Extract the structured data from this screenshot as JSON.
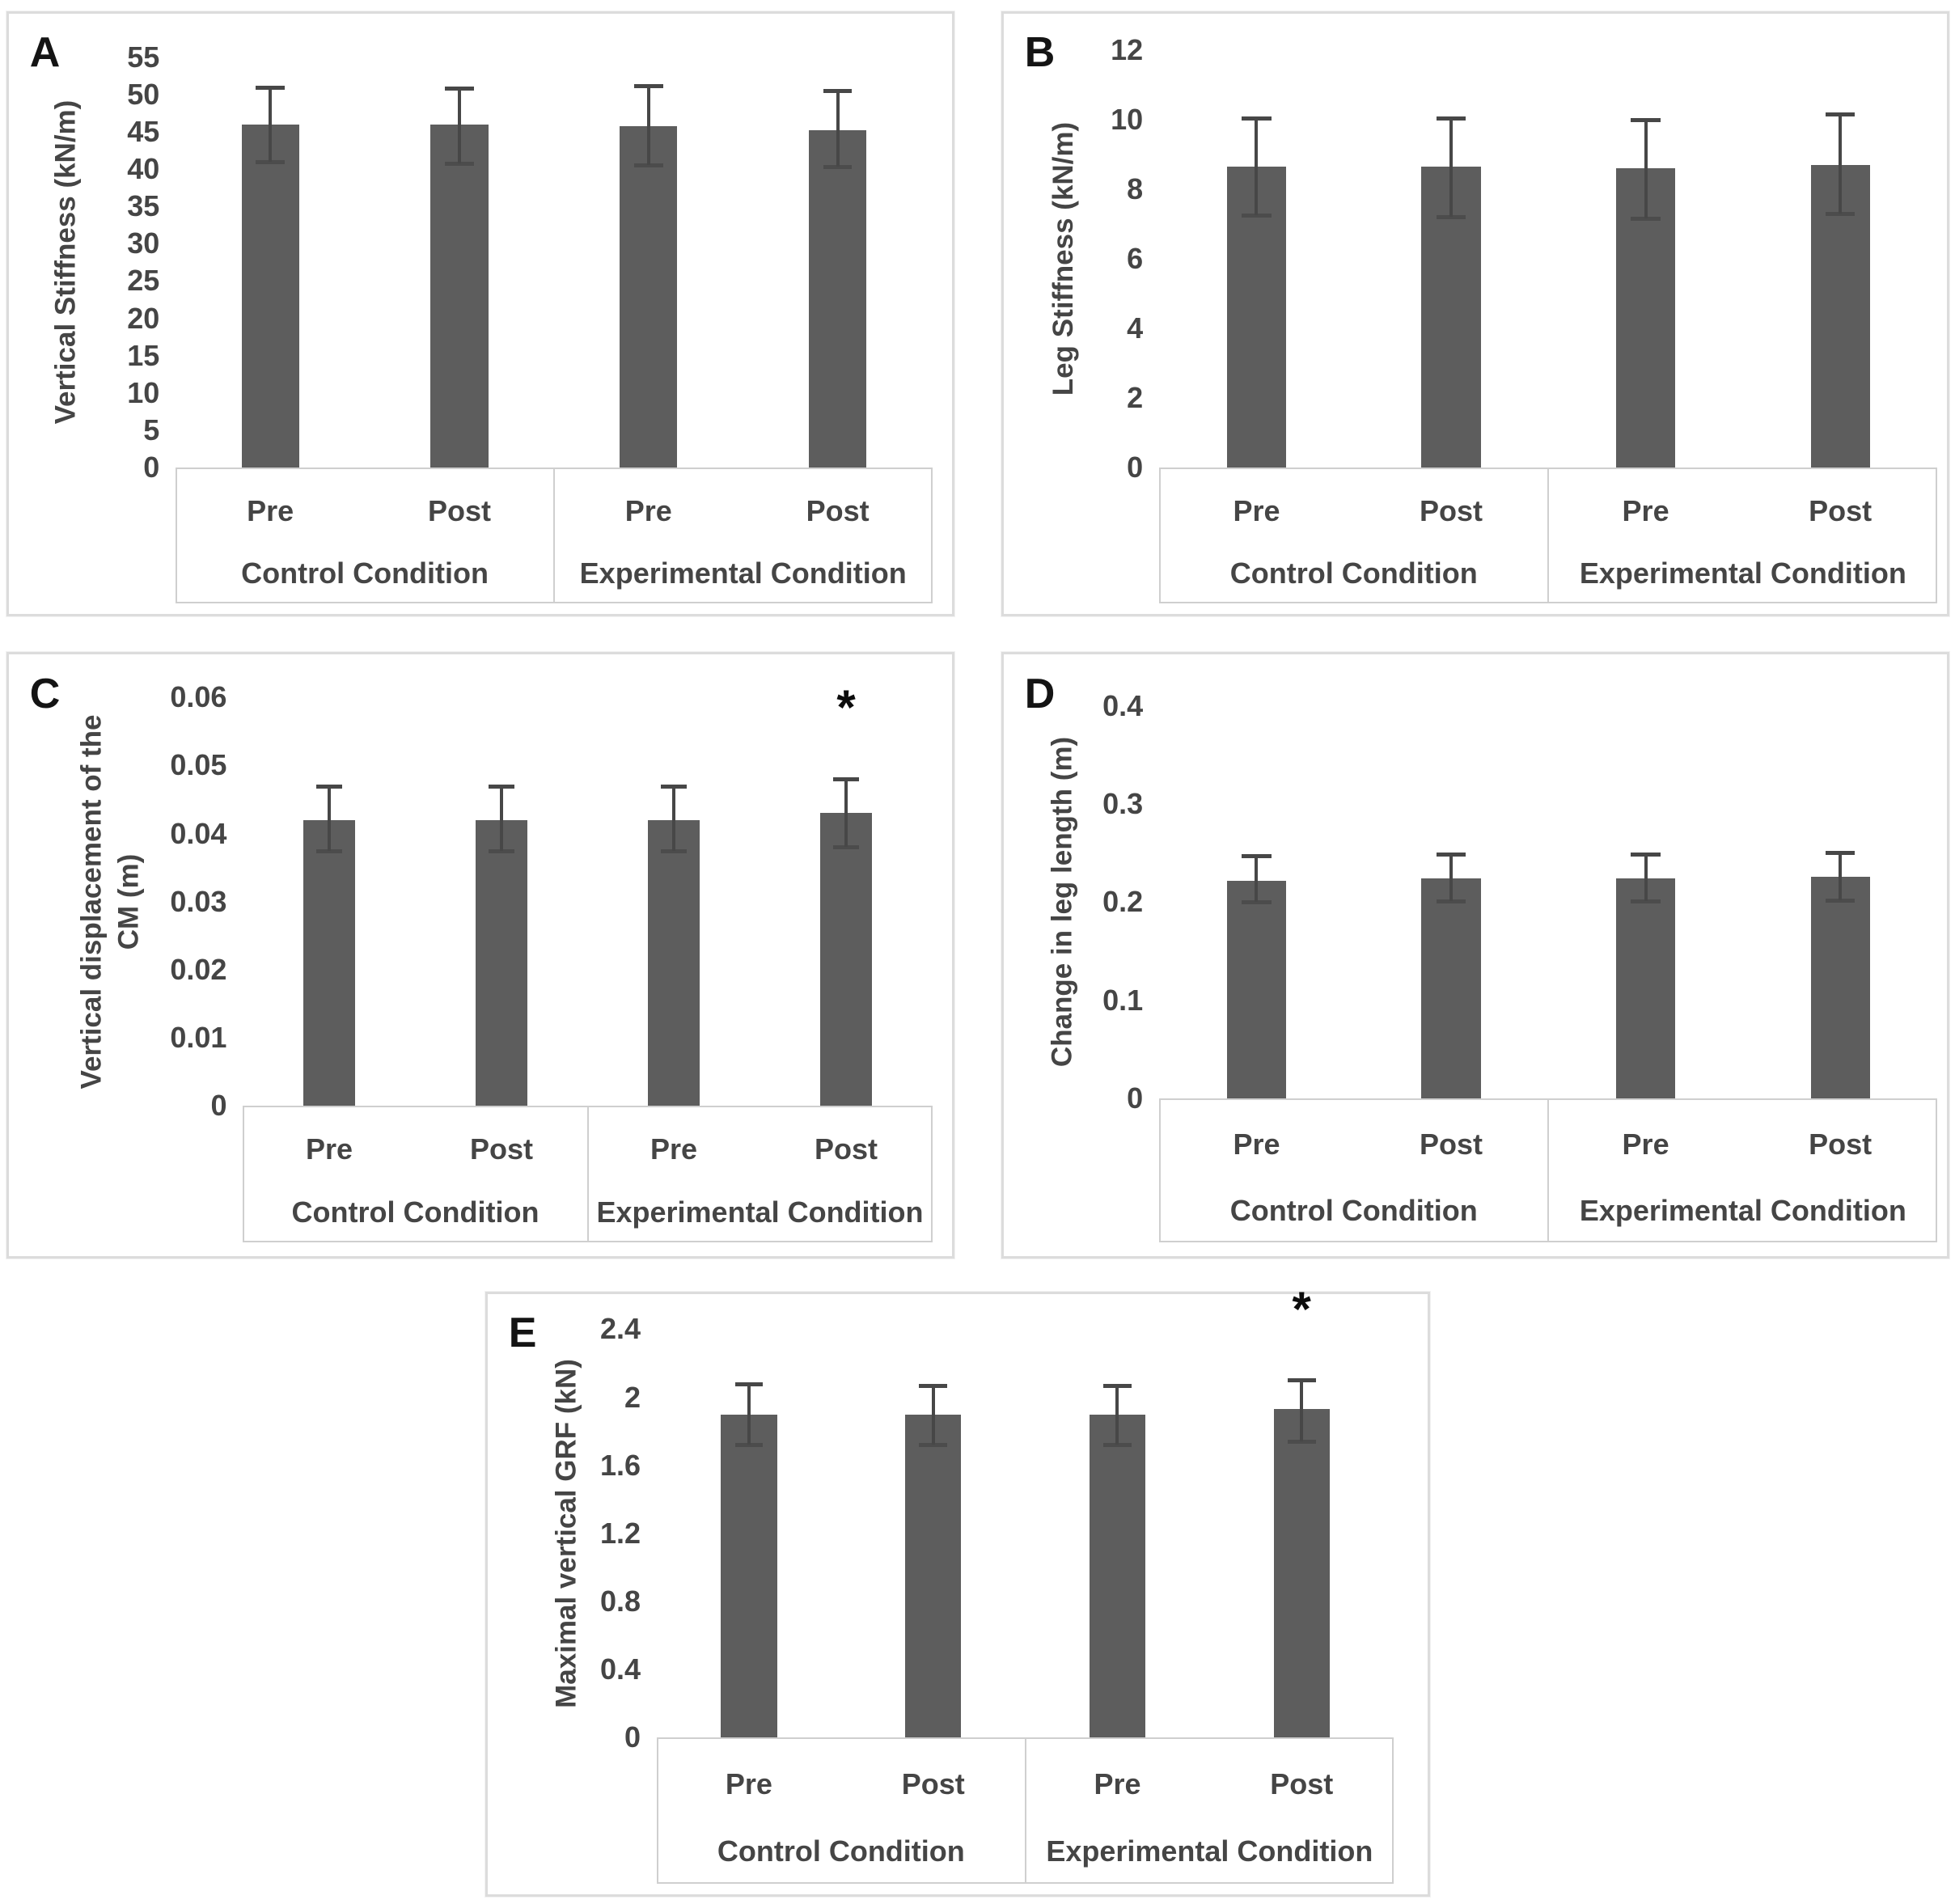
{
  "figure_title": "",
  "colors": {
    "bar": "#5d5d5d",
    "error": "#474747",
    "text": "#454545",
    "axis_line": "#cfcfcf",
    "panel_border": "#dcdcdc",
    "panel_letter": "#141414",
    "significance": "#0d0d0d"
  },
  "chart_data": [
    {
      "type": "bar",
      "panel": "A",
      "ylabel": "Vertical Stiffness (kN/m)",
      "ylabel_lines": [
        "Vertical Stiffness (kN/m)"
      ],
      "ylim": [
        0,
        55
      ],
      "yticks": [
        "55",
        "50",
        "45",
        "40",
        "35",
        "30",
        "25",
        "20",
        "15",
        "10",
        "5",
        "0"
      ],
      "grid": false,
      "legend": false,
      "categories": [
        "Pre",
        "Post",
        "Pre",
        "Post"
      ],
      "groups": [
        "Control Condition",
        "Experimental Condition"
      ],
      "values": [
        46.0,
        46.0,
        45.8,
        45.2
      ],
      "error_low": [
        41.0,
        40.8,
        40.6,
        40.3
      ],
      "error_high": [
        51.0,
        50.9,
        51.2,
        50.5
      ],
      "significance": [
        "",
        "",
        "",
        ""
      ]
    },
    {
      "type": "bar",
      "panel": "B",
      "ylabel": "Leg Stiffness (kN/m)",
      "ylabel_lines": [
        "Leg Stiffness (kN/m)"
      ],
      "ylim": [
        0,
        12
      ],
      "yticks": [
        "12",
        "10",
        "8",
        "6",
        "4",
        "2",
        "0"
      ],
      "grid": false,
      "legend": false,
      "categories": [
        "Pre",
        "Post",
        "Pre",
        "Post"
      ],
      "groups": [
        "Control Condition",
        "Experimental Condition"
      ],
      "values": [
        8.65,
        8.65,
        8.6,
        8.7
      ],
      "error_low": [
        7.25,
        7.2,
        7.15,
        7.3
      ],
      "error_high": [
        10.05,
        10.05,
        10.0,
        10.15
      ],
      "significance": [
        "",
        "",
        "",
        ""
      ]
    },
    {
      "type": "bar",
      "panel": "C",
      "ylabel": "Vertical displacement of the CM (m)",
      "ylabel_lines": [
        "Vertical displacement of the",
        "CM (m)"
      ],
      "ylim": [
        0,
        0.06
      ],
      "yticks": [
        "0.06",
        "0.05",
        "0.04",
        "0.03",
        "0.02",
        "0.01",
        "0"
      ],
      "grid": false,
      "legend": false,
      "categories": [
        "Pre",
        "Post",
        "Pre",
        "Post"
      ],
      "groups": [
        "Control Condition",
        "Experimental Condition"
      ],
      "values": [
        0.042,
        0.042,
        0.042,
        0.043
      ],
      "error_low": [
        0.0375,
        0.0375,
        0.0375,
        0.038
      ],
      "error_high": [
        0.047,
        0.047,
        0.047,
        0.048
      ],
      "significance": [
        "",
        "",
        "",
        "*"
      ]
    },
    {
      "type": "bar",
      "panel": "D",
      "ylabel": "Change in leg length (m)",
      "ylabel_lines": [
        "Change in leg length (m)"
      ],
      "ylim": [
        0,
        0.4
      ],
      "yticks": [
        "0.4",
        "0.3",
        "0.2",
        "0.1",
        "0"
      ],
      "grid": false,
      "legend": false,
      "categories": [
        "Pre",
        "Post",
        "Pre",
        "Post"
      ],
      "groups": [
        "Control Condition",
        "Experimental Condition"
      ],
      "values": [
        0.222,
        0.224,
        0.224,
        0.226
      ],
      "error_low": [
        0.2,
        0.201,
        0.201,
        0.202
      ],
      "error_high": [
        0.247,
        0.249,
        0.249,
        0.251
      ],
      "significance": [
        "",
        "",
        "",
        ""
      ]
    },
    {
      "type": "bar",
      "panel": "E",
      "ylabel": "Maximal vertical GRF (kN)",
      "ylabel_lines": [
        "Maximal vertical GRF (kN)"
      ],
      "ylim": [
        0,
        2.4
      ],
      "yticks": [
        "2.4",
        "2",
        "1.6",
        "1.2",
        "0.8",
        "0.4",
        "0"
      ],
      "grid": false,
      "legend": false,
      "categories": [
        "Pre",
        "Post",
        "Pre",
        "Post"
      ],
      "groups": [
        "Control Condition",
        "Experimental Condition"
      ],
      "values": [
        1.9,
        1.9,
        1.9,
        1.93
      ],
      "error_low": [
        1.72,
        1.72,
        1.72,
        1.74
      ],
      "error_high": [
        2.08,
        2.07,
        2.07,
        2.1
      ],
      "significance": [
        "",
        "",
        "",
        "*"
      ]
    }
  ]
}
